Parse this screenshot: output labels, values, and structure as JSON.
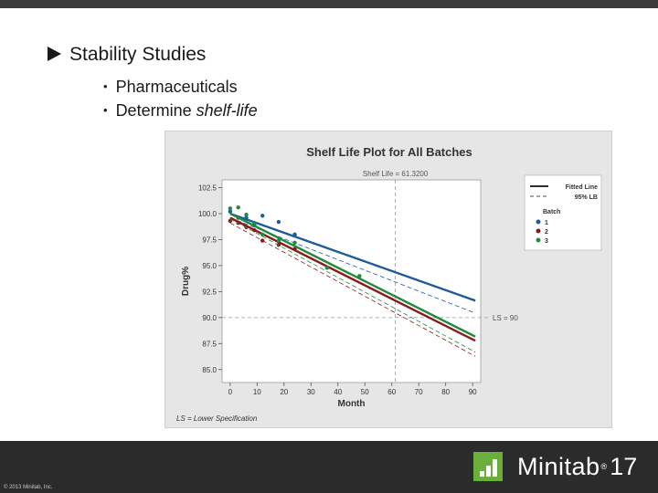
{
  "slide": {
    "heading": "Stability Studies",
    "bullets": [
      {
        "text": "Pharmaceuticals",
        "emph": ""
      },
      {
        "text": "Determine ",
        "emph": "shelf-life"
      }
    ],
    "copyright": "© 2013 Minitab, Inc.",
    "brand": {
      "name": "Minitab",
      "reg": "®",
      "version": "17",
      "color": "#6aae3c"
    }
  },
  "chart_data": {
    "type": "line",
    "title": "Shelf Life Plot for All Batches",
    "subtitle": "Shelf Life = 61.3200",
    "xlabel": "Month",
    "ylabel": "Drug%",
    "xlim": [
      -3,
      93
    ],
    "ylim": [
      83.75,
      103.25
    ],
    "xticks": [
      0,
      10,
      20,
      30,
      40,
      50,
      60,
      70,
      80,
      90
    ],
    "yticks": [
      85.0,
      87.5,
      90.0,
      92.5,
      95.0,
      97.5,
      100.0,
      102.5
    ],
    "ytick_labels": [
      "85.0",
      "87.5",
      "90.0",
      "92.5",
      "95.0",
      "97.5",
      "100.0",
      "102.5"
    ],
    "reference_lines": {
      "ls_value": 90,
      "ls_label": "LS = 90",
      "shelf_life": 61.32
    },
    "footnote": "LS = Lower Specification",
    "legend": {
      "placement": "right",
      "fitted_label": "Fitted Line",
      "lb_label": "95% LB",
      "group_title": "Batch"
    },
    "series": [
      {
        "name": "1",
        "color": "#1f5a9c",
        "intercept": 100.0,
        "slope": -0.092,
        "lb_offset": [
          0.4,
          1.2
        ],
        "points": [
          [
            0,
            100.2
          ],
          [
            3,
            99.6
          ],
          [
            6,
            99.6
          ],
          [
            9,
            98.9
          ],
          [
            12,
            99.8
          ],
          [
            18,
            99.2
          ],
          [
            24,
            98.0
          ]
        ]
      },
      {
        "name": "2",
        "color": "#8b1a1a",
        "intercept": 99.6,
        "slope": -0.13,
        "lb_offset": [
          0.5,
          1.5
        ],
        "points": [
          [
            0,
            99.3
          ],
          [
            3,
            99.1
          ],
          [
            6,
            98.7
          ],
          [
            9,
            98.4
          ],
          [
            12,
            97.4
          ],
          [
            18,
            97.0
          ],
          [
            24,
            96.6
          ],
          [
            36,
            94.8
          ]
        ]
      },
      {
        "name": "3",
        "color": "#1e8a3c",
        "intercept": 100.0,
        "slope": -0.13,
        "lb_offset": [
          0.5,
          1.5
        ],
        "points": [
          [
            0,
            100.5
          ],
          [
            3,
            100.6
          ],
          [
            6,
            99.9
          ],
          [
            9,
            99.1
          ],
          [
            12,
            98.0
          ],
          [
            18,
            97.4
          ],
          [
            24,
            97.2
          ],
          [
            36,
            94.8
          ],
          [
            48,
            94.0
          ]
        ]
      }
    ]
  }
}
